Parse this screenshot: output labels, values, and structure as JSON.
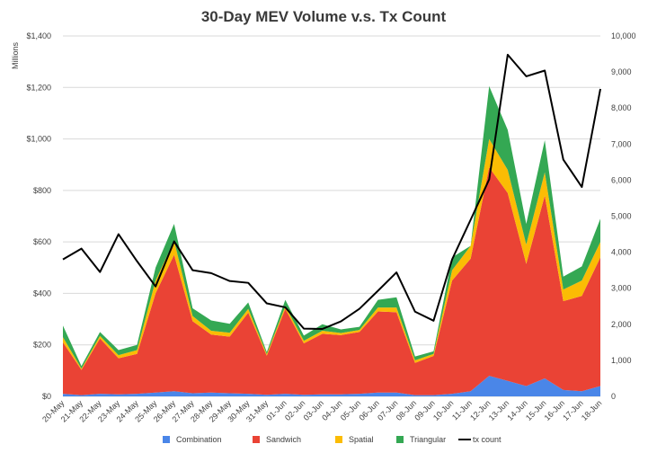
{
  "chart_data": {
    "type": "area",
    "title": "30-Day MEV Volume v.s. Tx Count",
    "ylabel": "Millions",
    "ylim": [
      0,
      1400
    ],
    "y_ticks": [
      "$0",
      "$200",
      "$400",
      "$600",
      "$800",
      "$1,000",
      "$1,200",
      "$1,400"
    ],
    "y_tick_values": [
      0,
      200,
      400,
      600,
      800,
      1000,
      1200,
      1400
    ],
    "y2lim": [
      0,
      10000
    ],
    "y2_ticks": [
      "0",
      "1,000",
      "2,000",
      "3,000",
      "4,000",
      "5,000",
      "6,000",
      "7,000",
      "8,000",
      "9,000",
      "10,000"
    ],
    "y2_tick_values": [
      0,
      1000,
      2000,
      3000,
      4000,
      5000,
      6000,
      7000,
      8000,
      9000,
      10000
    ],
    "categories": [
      "20-May",
      "21-May",
      "22-May",
      "23-May",
      "24-May",
      "25-May",
      "26-May",
      "27-May",
      "28-May",
      "29-May",
      "30-May",
      "31-May",
      "01-Jun",
      "02-Jun",
      "03-Jun",
      "04-Jun",
      "05-Jun",
      "06-Jun",
      "07-Jun",
      "08-Jun",
      "09-Jun",
      "10-Jun",
      "11-Jun",
      "12-Jun",
      "13-Jun",
      "14-Jun",
      "15-Jun",
      "16-Jun",
      "17-Jun",
      "18-Jun"
    ],
    "series": [
      {
        "name": "Combination",
        "kind": "area",
        "color": "#4a86e8",
        "values": [
          10,
          5,
          10,
          8,
          10,
          15,
          20,
          12,
          15,
          12,
          10,
          6,
          10,
          6,
          8,
          8,
          10,
          15,
          15,
          5,
          5,
          10,
          20,
          80,
          60,
          40,
          70,
          25,
          20,
          40
        ]
      },
      {
        "name": "Sandwich",
        "kind": "area",
        "color": "#ea4335",
        "values": [
          200,
          98,
          215,
          140,
          155,
          385,
          530,
          280,
          225,
          220,
          315,
          152,
          330,
          200,
          235,
          230,
          240,
          315,
          312,
          125,
          152,
          440,
          515,
          810,
          730,
          475,
          710,
          345,
          370,
          500
        ]
      },
      {
        "name": "Spatial",
        "kind": "area",
        "color": "#fbbc04",
        "values": [
          20,
          5,
          10,
          12,
          15,
          50,
          55,
          20,
          15,
          15,
          15,
          6,
          10,
          10,
          12,
          8,
          8,
          15,
          18,
          10,
          8,
          40,
          50,
          110,
          90,
          75,
          90,
          45,
          60,
          60
        ]
      },
      {
        "name": "Triangular",
        "kind": "area",
        "color": "#34a853",
        "values": [
          45,
          10,
          15,
          20,
          20,
          50,
          65,
          30,
          40,
          35,
          25,
          8,
          25,
          20,
          25,
          14,
          12,
          30,
          40,
          15,
          10,
          50,
          0,
          205,
          155,
          80,
          125,
          50,
          55,
          90
        ]
      },
      {
        "name": "tx count",
        "kind": "line",
        "axis": "right",
        "color": "#000000",
        "values": [
          3800,
          4100,
          3450,
          4500,
          3750,
          3050,
          4300,
          3500,
          3420,
          3200,
          3150,
          2580,
          2470,
          1880,
          1870,
          2080,
          2430,
          2930,
          3440,
          2350,
          2100,
          3800,
          4900,
          6020,
          9480,
          8880,
          9040,
          6570,
          5810,
          8530
        ]
      }
    ],
    "legend": [
      "Combination",
      "Sandwich",
      "Spatial",
      "Triangular",
      "tx count"
    ],
    "legend_position": "bottom",
    "grid": true
  }
}
